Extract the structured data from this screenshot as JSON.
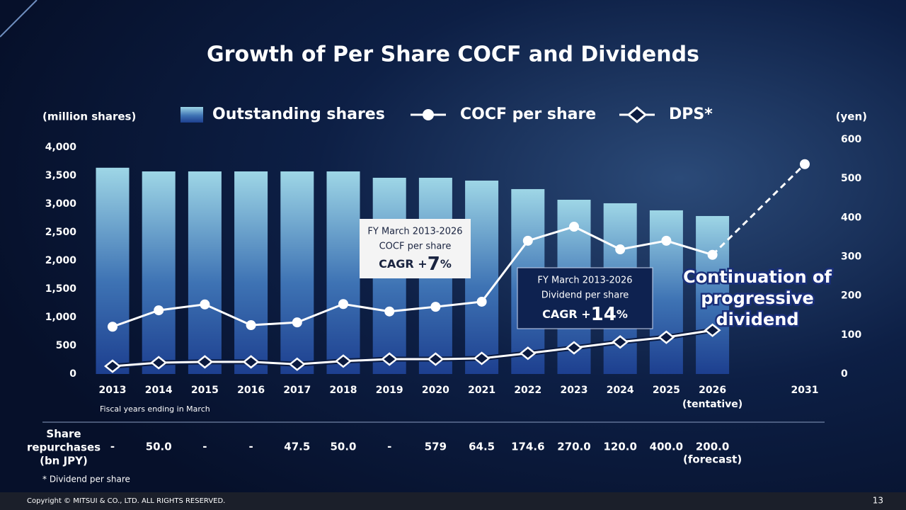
{
  "chart_data": {
    "type": "bar",
    "title": "Growth of Per Share COCF and Dividends",
    "y_label": "(million shares)",
    "y2_label": "(yen)",
    "categories": [
      "2013",
      "2014",
      "2015",
      "2016",
      "2017",
      "2018",
      "2019",
      "2020",
      "2021",
      "2022",
      "2023",
      "2024",
      "2025",
      "2026",
      null,
      "2031"
    ],
    "category_note": "(tentative)",
    "x_label": "Fiscal years ending in March",
    "ylim": [
      0,
      4000
    ],
    "yticks": [
      0,
      {
        "value": 500,
        "label": "500"
      },
      {
        "value": 1000,
        "label": "1,000"
      },
      {
        "value": 1500,
        "label": "1,500"
      },
      {
        "value": 2000,
        "label": "2,000"
      },
      {
        "value": 2500,
        "label": "2,500"
      },
      {
        "value": 3000,
        "label": "3,000"
      },
      {
        "value": 3500,
        "label": "3,500"
      },
      {
        "value": 4000,
        "label": "4,000"
      }
    ],
    "y2lim": [
      0,
      600
    ],
    "y2ticks": [
      0,
      100,
      200,
      300,
      400,
      500,
      600
    ],
    "series": [
      {
        "name": "Outstanding shares",
        "type": "bar",
        "color": "#7fc4dc",
        "values": [
          3640,
          3575,
          3575,
          3575,
          3575,
          3575,
          3463,
          3463,
          3413,
          3263,
          3075,
          3013,
          2888,
          2788,
          null,
          null
        ]
      },
      {
        "name": "COCF per share",
        "type": "line",
        "marker": "circle",
        "axis": "y2",
        "color": "#ffffff",
        "values": [
          121,
          163,
          178,
          125,
          132,
          179,
          160,
          172,
          185,
          341,
          377,
          319,
          341,
          305,
          null,
          537
        ]
      },
      {
        "name": "DPS*",
        "type": "line",
        "marker": "diamond",
        "axis": "y2",
        "color": "#ffffff",
        "values": [
          20,
          29,
          31,
          31,
          25,
          33,
          38,
          38,
          40,
          53,
          67,
          82,
          94,
          112,
          null,
          null
        ]
      }
    ],
    "annotations": [
      {
        "lines": [
          "FY March 2013-2026",
          "COCF per share"
        ],
        "cagr": [
          "CAGR +",
          "7",
          "%"
        ]
      },
      {
        "lines": [
          "FY March 2013-2026",
          "Dividend per share"
        ],
        "cagr": [
          "CAGR +",
          "14",
          "%"
        ]
      },
      {
        "lines": [
          "Continuation of",
          "progressive",
          "dividend"
        ]
      }
    ],
    "table": {
      "label": [
        "Share",
        "repurchases",
        "(bn JPY)"
      ],
      "cells": [
        "-",
        "50.0",
        "-",
        "-",
        "47.5",
        "50.0",
        "-",
        "579",
        "64.5",
        "174.6",
        "270.0",
        "120.0",
        "400.0",
        "200.0"
      ],
      "note": "(forecast)"
    },
    "footnote": "* Dividend per share",
    "copyright": "Copyright © MITSUI & CO., LTD. ALL RIGHTS RESERVED.",
    "page": "13"
  }
}
